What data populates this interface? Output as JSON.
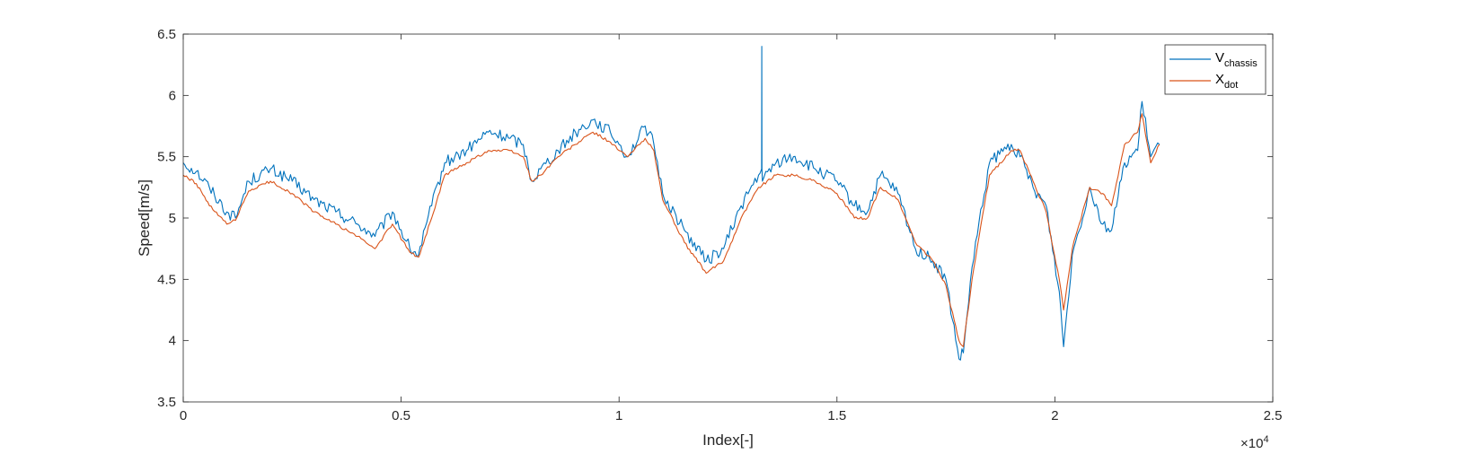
{
  "chart_data": {
    "type": "line",
    "xlabel": "Index[-]",
    "ylabel": "Speed[m/s]",
    "x_exponent_label": "×10",
    "x_exponent_power": "4",
    "xlim": [
      0,
      25000
    ],
    "ylim": [
      3.5,
      6.5
    ],
    "x_ticks": [
      0,
      5000,
      10000,
      15000,
      20000,
      25000
    ],
    "x_tick_labels": [
      "0",
      "0.5",
      "1",
      "1.5",
      "2",
      "2.5"
    ],
    "y_ticks": [
      3.5,
      4,
      4.5,
      5,
      5.5,
      6,
      6.5
    ],
    "y_tick_labels": [
      "3.5",
      "4",
      "4.5",
      "5",
      "5.5",
      "6",
      "6.5"
    ],
    "grid": false,
    "legend_position": "top-right",
    "series": [
      {
        "name_main": "V",
        "name_sub": "chassis",
        "color": "#0072BD",
        "noise": 0.05,
        "x": [
          0,
          300,
          600,
          1000,
          1200,
          1500,
          2000,
          2500,
          3000,
          3500,
          4000,
          4400,
          4800,
          5200,
          5400,
          5700,
          6000,
          6500,
          7000,
          7500,
          7800,
          8000,
          8200,
          8600,
          9000,
          9400,
          9800,
          10000,
          10200,
          10600,
          10800,
          11000,
          11500,
          12000,
          12400,
          12800,
          13200,
          13270,
          13275,
          13280,
          13290,
          13600,
          14000,
          14500,
          15000,
          15400,
          15700,
          16000,
          16400,
          16800,
          17200,
          17500,
          17800,
          17900,
          18100,
          18500,
          19000,
          19200,
          19500,
          19800,
          20100,
          20200,
          20400,
          20800,
          21100,
          21300,
          21600,
          21900,
          22000,
          22200,
          22400
        ],
        "y": [
          5.45,
          5.38,
          5.25,
          5.05,
          5.0,
          5.3,
          5.4,
          5.3,
          5.15,
          5.05,
          4.95,
          4.85,
          5.05,
          4.75,
          4.7,
          5.1,
          5.45,
          5.55,
          5.7,
          5.65,
          5.6,
          5.3,
          5.4,
          5.55,
          5.7,
          5.8,
          5.7,
          5.6,
          5.5,
          5.75,
          5.6,
          5.2,
          4.9,
          4.65,
          4.75,
          5.1,
          5.35,
          5.4,
          6.4,
          5.4,
          5.3,
          5.45,
          5.5,
          5.4,
          5.3,
          5.1,
          5.05,
          5.35,
          5.2,
          4.75,
          4.65,
          4.5,
          3.85,
          3.9,
          4.6,
          5.45,
          5.6,
          5.5,
          5.25,
          5.1,
          4.4,
          3.95,
          4.7,
          5.25,
          4.95,
          4.9,
          5.45,
          5.55,
          5.95,
          5.5,
          5.6
        ]
      },
      {
        "name_main": "X",
        "name_sub": "dot",
        "color": "#D95319",
        "noise": 0.012,
        "x": [
          0,
          300,
          600,
          1000,
          1200,
          1500,
          2000,
          2500,
          3000,
          3500,
          4000,
          4400,
          4800,
          5200,
          5400,
          5700,
          6000,
          6500,
          7000,
          7500,
          7800,
          8000,
          8200,
          8600,
          9000,
          9400,
          9800,
          10000,
          10200,
          10600,
          10800,
          11000,
          11500,
          12000,
          12400,
          12800,
          13200,
          13600,
          14000,
          14500,
          15000,
          15400,
          15700,
          16000,
          16400,
          16800,
          17200,
          17500,
          17800,
          17900,
          18100,
          18500,
          19000,
          19200,
          19500,
          19800,
          20100,
          20200,
          20400,
          20800,
          21100,
          21300,
          21600,
          21900,
          22000,
          22200,
          22400
        ],
        "y": [
          5.35,
          5.28,
          5.1,
          4.95,
          4.98,
          5.22,
          5.3,
          5.2,
          5.05,
          4.95,
          4.85,
          4.75,
          4.95,
          4.72,
          4.68,
          5.0,
          5.35,
          5.45,
          5.55,
          5.55,
          5.5,
          5.3,
          5.35,
          5.5,
          5.6,
          5.7,
          5.62,
          5.55,
          5.5,
          5.65,
          5.55,
          5.15,
          4.8,
          4.55,
          4.65,
          5.0,
          5.25,
          5.35,
          5.35,
          5.3,
          5.2,
          5.0,
          5.0,
          5.25,
          5.15,
          4.8,
          4.65,
          4.45,
          4.0,
          3.95,
          4.5,
          5.35,
          5.55,
          5.55,
          5.3,
          5.05,
          4.5,
          4.25,
          4.75,
          5.25,
          5.2,
          5.1,
          5.6,
          5.7,
          5.85,
          5.45,
          5.6
        ]
      }
    ]
  }
}
